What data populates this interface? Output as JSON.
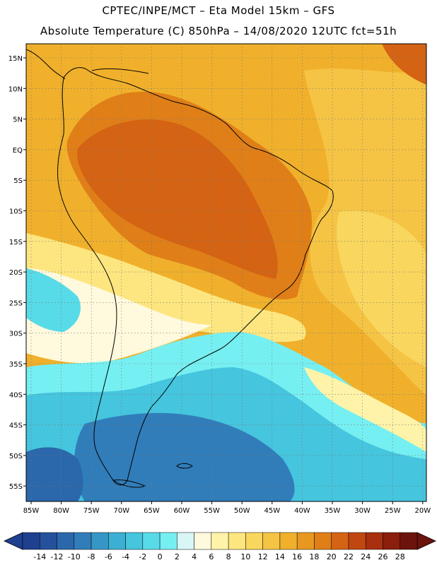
{
  "header": {
    "line1": "CPTEC/INPE/MCT –  Eta Model 15km – GFS",
    "line2": "Absolute Temperature (C) 850hPa – 14/08/2020 12UTC fct=51h"
  },
  "axes": {
    "lat_labels": [
      "15N",
      "10N",
      "5N",
      "EQ",
      "5S",
      "10S",
      "15S",
      "20S",
      "25S",
      "30S",
      "35S",
      "40S",
      "45S",
      "50S",
      "55S"
    ],
    "lon_labels": [
      "85W",
      "80W",
      "75W",
      "70W",
      "65W",
      "60W",
      "55W",
      "50W",
      "45W",
      "40W",
      "35W",
      "30W",
      "25W",
      "20W"
    ]
  },
  "colorbar": {
    "labels": [
      "-14",
      "-12",
      "-10",
      "-8",
      "-6",
      "-4",
      "-2",
      "0",
      "2",
      "4",
      "6",
      "8",
      "10",
      "12",
      "14",
      "16",
      "18",
      "20",
      "22",
      "24",
      "26",
      "28"
    ],
    "colors": [
      "#1f3f8f",
      "#25519c",
      "#2b67ab",
      "#317dba",
      "#3696c6",
      "#3cb0d2",
      "#45c5de",
      "#58dbe8",
      "#76eff2",
      "#d8f6f6",
      "#fff9dd",
      "#fef3a8",
      "#fde680",
      "#f9d65e",
      "#f5c444",
      "#f0b02b",
      "#e89820",
      "#e07f18",
      "#d46313",
      "#c04710",
      "#a8300e",
      "#8b1e0d",
      "#6b130c"
    ]
  },
  "map": {
    "background_color": "#f0b32b"
  }
}
